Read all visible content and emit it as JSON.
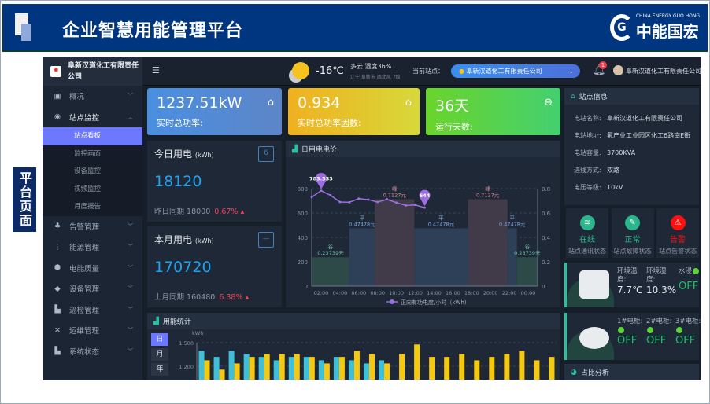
{
  "banner": {
    "title": "企业智慧用能管理平台",
    "logo_en": "CHINA ENERGY GUO HONG",
    "logo_cn": "中能国宏"
  },
  "page_label": "平台页面",
  "sidebar": {
    "company": "阜新汉道化工有限责任公司",
    "items": [
      {
        "label": "概况",
        "icon": "dashboard-icon"
      },
      {
        "label": "站点监控",
        "icon": "gauge-icon",
        "expanded": true
      },
      {
        "label": "告警管理",
        "icon": "alarm-icon"
      },
      {
        "label": "能源管理",
        "icon": "tree-icon"
      },
      {
        "label": "电能质量",
        "icon": "cube-icon"
      },
      {
        "label": "设备管理",
        "icon": "box-icon"
      },
      {
        "label": "巡检管理",
        "icon": "bar-icon"
      },
      {
        "label": "运维管理",
        "icon": "tools-icon"
      },
      {
        "label": "系统状态",
        "icon": "bar-icon"
      }
    ],
    "subitems": [
      "站点看板",
      "监控画面",
      "设备监控",
      "视频监控",
      "月度报告"
    ],
    "active_sub": "站点看板"
  },
  "topbar": {
    "temp": "-16℃",
    "weather": "多云",
    "humidity": "湿度36%",
    "location": "辽宁 阜新市 西北风 7级",
    "site_label": "当前站点：",
    "site_value": "阜新汉道化工有限责任公司",
    "notif_count": "1",
    "user": "阜新汉道化工有限责任公司"
  },
  "kpis": [
    {
      "value": "1237.51kW",
      "label": "实时总功率:",
      "color": "#4a8fe0"
    },
    {
      "value": "0.934",
      "label": "实时总功率因数:",
      "color": "#f0b020"
    },
    {
      "value": "36天",
      "label": "运行天数:",
      "color": "#5cd040"
    }
  ],
  "today": {
    "title": "今日用电",
    "unit": "(kWh)",
    "value": "18120",
    "cmp_label": "昨日同期",
    "cmp_value": "18000",
    "pct": "0.67%",
    "cal": "6"
  },
  "month": {
    "title": "本月用电",
    "unit": "(kWh)",
    "value": "170720",
    "cmp_label": "上月同期",
    "cmp_value": "160480",
    "pct": "6.38%"
  },
  "site_info": {
    "title": "站点信息",
    "rows": [
      {
        "k": "电站名称:",
        "v": "阜新汉道化工有限责任公司"
      },
      {
        "k": "电站地址:",
        "v": "氟产业工业园区化工6路南E街"
      },
      {
        "k": "电站容量:",
        "v": "3700KVA"
      },
      {
        "k": "进线方式:",
        "v": "双路"
      },
      {
        "k": "电压等级:",
        "v": "10kV"
      }
    ]
  },
  "status": [
    {
      "state": "在线",
      "desc": "站点通讯状态",
      "color": "#2bb58a",
      "icon": "wifi-icon"
    },
    {
      "state": "正常",
      "desc": "站点故障状态",
      "color": "#2bb58a",
      "icon": "wrench-icon"
    },
    {
      "state": "告警",
      "desc": "站点告警状态",
      "color": "#ff1010",
      "icon": "warning-icon"
    }
  ],
  "env": {
    "temp_label": "环境温度:",
    "temp": "7.7℃",
    "hum_label": "环境湿度:",
    "hum": "10.3%",
    "water_label": "水浸",
    "water": "OFF"
  },
  "smoke": [
    {
      "label": "1#电柜:",
      "value": "OFF"
    },
    {
      "label": "2#电柜:",
      "value": "OFF"
    },
    {
      "label": "3#电柜:",
      "value": "OFF"
    }
  ],
  "ratio_title": "占比分析",
  "usage": {
    "title": "用能统计",
    "tabs": [
      "日",
      "月",
      "年"
    ],
    "active": "日"
  },
  "chart_data": [
    {
      "type": "line",
      "title": "日用电电价",
      "legend": "正向有功电度/小时（kWh)",
      "ylim": [
        0,
        800
      ],
      "y2lim": [
        0,
        0.8
      ],
      "yticks": [
        0,
        200,
        400,
        600,
        800
      ],
      "y2ticks": [
        "0",
        "0.2",
        "0.4",
        "0.6",
        "0.8"
      ],
      "xticks": [
        "02:00",
        "04:00",
        "06:00",
        "08:00",
        "10:00",
        "12:00",
        "14:00",
        "16:00",
        "18:00",
        "20:00",
        "22:00",
        "00:00"
      ],
      "x": [
        0,
        1,
        2,
        3,
        4,
        5,
        6,
        7,
        8,
        9,
        10,
        11,
        12
      ],
      "values": [
        730,
        783.333,
        745,
        690,
        688,
        718,
        710,
        690,
        712,
        685,
        662,
        666,
        644
      ],
      "markers": [
        {
          "label": "783.333",
          "x": 1,
          "y": 783.333
        },
        {
          "label": "644",
          "x": 12,
          "y": 644
        }
      ],
      "price_bands": [
        {
          "type": "谷",
          "price": "0.23739元",
          "value": 0.23739,
          "start": 0,
          "end": 4,
          "color": "#2d4a48"
        },
        {
          "type": "平",
          "price": "0.47478元",
          "value": 0.47478,
          "start": 4,
          "end": 6.7,
          "color": "#2e3f58"
        },
        {
          "type": "峰",
          "price": "0.7127元",
          "value": 0.7127,
          "start": 6.7,
          "end": 10.9,
          "color": "#413a48"
        },
        {
          "type": "平",
          "price": "0.47478元",
          "value": 0.47478,
          "start": 10.9,
          "end": 16.6,
          "color": "#2e3f58"
        },
        {
          "type": "峰",
          "price": "0.7127元",
          "value": 0.7127,
          "start": 16.6,
          "end": 20.8,
          "color": "#413a48"
        },
        {
          "type": "平",
          "price": "0.47478元",
          "value": 0.47478,
          "start": 20.8,
          "end": 21.8,
          "color": "#2e3f58"
        },
        {
          "type": "谷",
          "price": "0.23739元",
          "value": 0.23739,
          "start": 21.8,
          "end": 24,
          "color": "#2d4a48"
        }
      ],
      "grid": true
    },
    {
      "type": "bar",
      "ylabel": "kWh",
      "ylim": [
        0,
        1500
      ],
      "yticks": [
        "1,200",
        "1,500"
      ],
      "count": 24,
      "series": [
        {
          "color": "#3fc0d8",
          "values": [
            1395,
            1319,
            1395,
            1355,
            1319,
            1276,
            1319,
            1319,
            1276,
            1319,
            1276,
            1236,
            1276
          ]
        },
        {
          "color": "#f5c812",
          "values": [
            1276,
            1157,
            1236,
            1319,
            1355,
            1355,
            1355,
            1319,
            1236,
            1319,
            1395,
            1355,
            1236,
            1355,
            1477,
            1319,
            1319,
            1355,
            1276,
            1319,
            1355,
            1395,
            1276,
            1319
          ]
        }
      ],
      "grid": true
    }
  ]
}
